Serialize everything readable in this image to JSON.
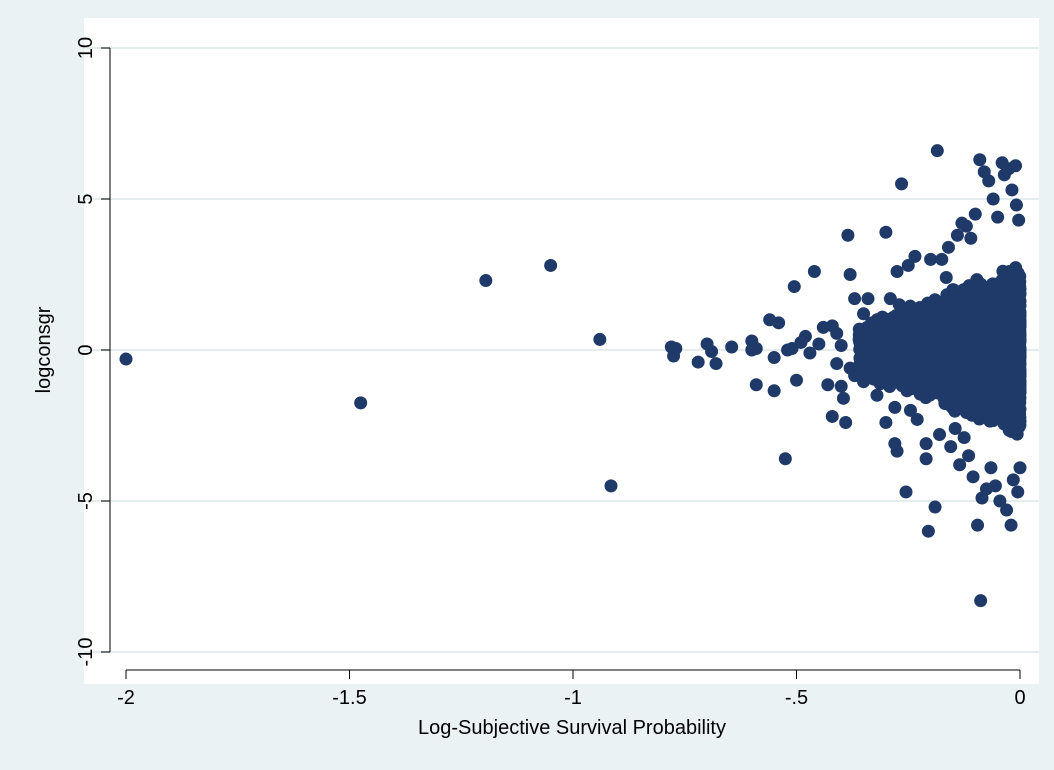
{
  "chart_data": {
    "type": "scatter",
    "xlabel": "Log-Subjective Survival Probability",
    "ylabel": "logconsgr",
    "xlim": [
      -2.0,
      0.0
    ],
    "ylim": [
      -10,
      10
    ],
    "x_ticks": [
      -2,
      -1.5,
      -1,
      -0.5,
      0
    ],
    "x_tick_labels": [
      "-2",
      "-1.5",
      "-1",
      "-.5",
      "0"
    ],
    "y_ticks": [
      -10,
      -5,
      0,
      5,
      10
    ],
    "y_tick_labels": [
      "-10",
      "-5",
      "0",
      "5",
      "10"
    ],
    "grid": "horizontal",
    "legend": "none",
    "colors": {
      "background": "#eaf2f3",
      "plot_area": "#ffffff",
      "marker": "#1f3a68",
      "grid": "#e4ecee"
    },
    "series": [
      {
        "points": [
          {
            "x": -2.0,
            "y": -0.3
          },
          {
            "x": -1.475,
            "y": -1.75
          },
          {
            "x": -1.195,
            "y": 2.3
          },
          {
            "x": -1.05,
            "y": 2.8
          },
          {
            "x": -0.94,
            "y": 0.35
          },
          {
            "x": -0.915,
            "y": -4.5
          },
          {
            "x": -0.78,
            "y": 0.1
          },
          {
            "x": -0.775,
            "y": -0.2
          },
          {
            "x": -0.77,
            "y": 0.05
          },
          {
            "x": -0.72,
            "y": -0.4
          },
          {
            "x": -0.7,
            "y": 0.2
          },
          {
            "x": -0.69,
            "y": -0.05
          },
          {
            "x": -0.68,
            "y": -0.45
          },
          {
            "x": -0.645,
            "y": 0.1
          },
          {
            "x": -0.6,
            "y": 0.3
          },
          {
            "x": -0.6,
            "y": 0.0
          },
          {
            "x": -0.59,
            "y": -1.15
          },
          {
            "x": -0.59,
            "y": 0.05
          },
          {
            "x": -0.56,
            "y": 1.0
          },
          {
            "x": -0.55,
            "y": -0.25
          },
          {
            "x": -0.55,
            "y": -1.35
          },
          {
            "x": -0.54,
            "y": 0.9
          },
          {
            "x": -0.525,
            "y": -3.6
          },
          {
            "x": -0.52,
            "y": 0.0
          },
          {
            "x": -0.51,
            "y": 0.05
          },
          {
            "x": -0.505,
            "y": 2.1
          },
          {
            "x": -0.5,
            "y": -1.0
          },
          {
            "x": -0.49,
            "y": 0.25
          },
          {
            "x": -0.48,
            "y": 0.45
          },
          {
            "x": -0.47,
            "y": -0.1
          },
          {
            "x": -0.46,
            "y": 2.6
          },
          {
            "x": -0.45,
            "y": 0.2
          },
          {
            "x": -0.44,
            "y": 0.75
          },
          {
            "x": -0.43,
            "y": -1.15
          },
          {
            "x": -0.42,
            "y": 0.8
          },
          {
            "x": -0.42,
            "y": -2.2
          },
          {
            "x": -0.41,
            "y": 0.55
          },
          {
            "x": -0.41,
            "y": -0.45
          },
          {
            "x": -0.4,
            "y": -1.2
          },
          {
            "x": -0.4,
            "y": 0.15
          },
          {
            "x": -0.395,
            "y": -1.6
          },
          {
            "x": -0.39,
            "y": -2.4
          },
          {
            "x": -0.385,
            "y": 3.8
          },
          {
            "x": -0.38,
            "y": 2.5
          },
          {
            "x": -0.38,
            "y": -0.6
          },
          {
            "x": -0.37,
            "y": 1.7
          },
          {
            "x": -0.37,
            "y": -0.85
          },
          {
            "x": -0.36,
            "y": 0.35
          },
          {
            "x": -0.35,
            "y": 1.2
          },
          {
            "x": -0.35,
            "y": -1.05
          },
          {
            "x": -0.34,
            "y": 1.7
          },
          {
            "x": -0.34,
            "y": 0.6
          },
          {
            "x": -0.33,
            "y": -0.8
          },
          {
            "x": -0.32,
            "y": 1.0
          },
          {
            "x": -0.32,
            "y": -1.5
          },
          {
            "x": -0.31,
            "y": 0.1
          },
          {
            "x": -0.3,
            "y": 3.9
          },
          {
            "x": -0.3,
            "y": -2.4
          },
          {
            "x": -0.29,
            "y": 1.7
          },
          {
            "x": -0.29,
            "y": 0.8
          },
          {
            "x": -0.28,
            "y": -3.1
          },
          {
            "x": -0.28,
            "y": -1.9
          },
          {
            "x": -0.275,
            "y": 2.6
          },
          {
            "x": -0.275,
            "y": -3.35
          },
          {
            "x": -0.27,
            "y": 1.5
          },
          {
            "x": -0.265,
            "y": 5.5
          },
          {
            "x": -0.26,
            "y": -0.9
          },
          {
            "x": -0.255,
            "y": -4.7
          },
          {
            "x": -0.25,
            "y": 2.8
          },
          {
            "x": -0.245,
            "y": -2.0
          },
          {
            "x": -0.24,
            "y": 1.3
          },
          {
            "x": -0.235,
            "y": 3.1
          },
          {
            "x": -0.23,
            "y": -2.3
          },
          {
            "x": -0.225,
            "y": 0.5
          },
          {
            "x": -0.22,
            "y": -1.3
          },
          {
            "x": -0.21,
            "y": -3.1
          },
          {
            "x": -0.21,
            "y": -3.6
          },
          {
            "x": -0.205,
            "y": -6.0
          },
          {
            "x": -0.2,
            "y": 3.0
          },
          {
            "x": -0.19,
            "y": -5.2
          },
          {
            "x": -0.185,
            "y": 6.6
          },
          {
            "x": -0.18,
            "y": -2.8
          },
          {
            "x": -0.175,
            "y": 3.0
          },
          {
            "x": -0.17,
            "y": -1.6
          },
          {
            "x": -0.165,
            "y": 2.4
          },
          {
            "x": -0.16,
            "y": 3.4
          },
          {
            "x": -0.155,
            "y": -3.2
          },
          {
            "x": -0.15,
            "y": 2.0
          },
          {
            "x": -0.145,
            "y": -2.6
          },
          {
            "x": -0.14,
            "y": 3.8
          },
          {
            "x": -0.135,
            "y": -3.8
          },
          {
            "x": -0.13,
            "y": 4.2
          },
          {
            "x": -0.125,
            "y": -2.9
          },
          {
            "x": -0.12,
            "y": 4.1
          },
          {
            "x": -0.115,
            "y": -3.5
          },
          {
            "x": -0.11,
            "y": 3.7
          },
          {
            "x": -0.105,
            "y": -4.2
          },
          {
            "x": -0.1,
            "y": 4.5
          },
          {
            "x": -0.095,
            "y": -5.8
          },
          {
            "x": -0.09,
            "y": 6.3
          },
          {
            "x": -0.088,
            "y": -8.3
          },
          {
            "x": -0.085,
            "y": -4.9
          },
          {
            "x": -0.08,
            "y": 5.9
          },
          {
            "x": -0.075,
            "y": -4.6
          },
          {
            "x": -0.07,
            "y": 5.6
          },
          {
            "x": -0.065,
            "y": -3.9
          },
          {
            "x": -0.06,
            "y": 5.0
          },
          {
            "x": -0.055,
            "y": -4.5
          },
          {
            "x": -0.05,
            "y": 4.4
          },
          {
            "x": -0.045,
            "y": -5.0
          },
          {
            "x": -0.04,
            "y": 6.2
          },
          {
            "x": -0.035,
            "y": 5.8
          },
          {
            "x": -0.03,
            "y": -5.3
          },
          {
            "x": -0.025,
            "y": 6.0
          },
          {
            "x": -0.02,
            "y": -5.8
          },
          {
            "x": -0.018,
            "y": 5.3
          },
          {
            "x": -0.015,
            "y": -4.3
          },
          {
            "x": -0.01,
            "y": 6.1
          },
          {
            "x": -0.008,
            "y": 4.8
          },
          {
            "x": -0.005,
            "y": -4.7
          },
          {
            "x": -0.003,
            "y": 4.3
          },
          {
            "x": 0.0,
            "y": -3.9
          }
        ]
      }
    ]
  }
}
